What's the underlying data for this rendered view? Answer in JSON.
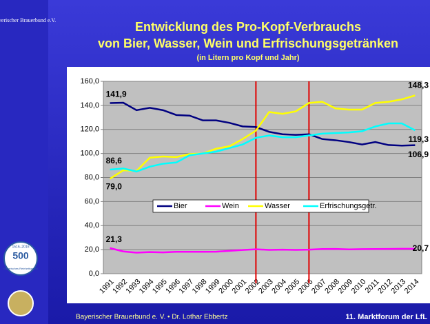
{
  "slide": {
    "footer_left": "Bayerischer Brauerbund e. V. • Dr. Lothar Ebbertz",
    "footer_right": "11. Marktforum der LfL",
    "logo_name": "Bayerischer Brauerbund e.V.",
    "badge_number": "500",
    "badge_years": "1516–2016",
    "badge_text": "Bayerisches Reinheitsgebot"
  },
  "chart_data": {
    "type": "line",
    "title": [
      "Entwicklung des Pro-Kopf-Verbrauchs",
      "von Bier, Wasser, Wein und Erfrischungsgetränken"
    ],
    "subtitle": "(in Litern pro Kopf und Jahr)",
    "categories": [
      "1991",
      "1992",
      "1993",
      "1994",
      "1995",
      "1996",
      "1997",
      "1998",
      "1999",
      "2000",
      "2001",
      "2002",
      "2003",
      "2004",
      "2005",
      "2006",
      "2007",
      "2008",
      "2009",
      "2010",
      "2011",
      "2012",
      "2013",
      "2014"
    ],
    "ylim": [
      0,
      160
    ],
    "yticks": [
      {
        "value": 0,
        "label": "0,0"
      },
      {
        "value": 20,
        "label": "20,0"
      },
      {
        "value": 40,
        "label": "40,0"
      },
      {
        "value": 60,
        "label": "60,0"
      },
      {
        "value": 80,
        "label": "80,0"
      },
      {
        "value": 100,
        "label": "100,0"
      },
      {
        "value": 120,
        "label": "120,0"
      },
      {
        "value": 140,
        "label": "140,0"
      },
      {
        "value": 160,
        "label": "160,0"
      }
    ],
    "grid": true,
    "vlines": [
      "2002",
      "2006"
    ],
    "vline_color": "#e00000",
    "legend": "center",
    "series": [
      {
        "name": "Bier",
        "color": "#000080",
        "values": [
          141.9,
          142.2,
          136,
          138,
          136,
          132,
          131.5,
          127.5,
          127.5,
          125.5,
          122.5,
          122,
          118,
          116,
          115.5,
          116,
          112,
          111,
          109.5,
          107.5,
          109.5,
          107,
          106.5,
          106.9
        ],
        "value_labels": [
          "141,9",
          null,
          null,
          null,
          null,
          null,
          null,
          null,
          null,
          null,
          null,
          null,
          null,
          null,
          null,
          null,
          null,
          null,
          null,
          null,
          null,
          null,
          null,
          "106,9"
        ]
      },
      {
        "name": "Wein",
        "color": "#ff00ff",
        "values": [
          21.3,
          18.5,
          17.5,
          18,
          17.7,
          18.2,
          18.2,
          18.2,
          18.3,
          19,
          19.7,
          20.3,
          19.8,
          20,
          19.8,
          20,
          20.5,
          20.6,
          20.2,
          20.4,
          20.5,
          20.6,
          20.7,
          20.7
        ],
        "value_labels": [
          "21,3",
          null,
          null,
          null,
          null,
          null,
          null,
          null,
          null,
          null,
          null,
          null,
          null,
          null,
          null,
          null,
          null,
          null,
          null,
          null,
          null,
          null,
          null,
          "20,7"
        ]
      },
      {
        "name": "Wasser",
        "color": "#ffff00",
        "values": [
          79.0,
          86,
          85.5,
          96.5,
          97.5,
          97,
          99.5,
          100,
          104,
          106,
          112,
          119,
          134.5,
          133,
          135,
          142,
          143,
          137.5,
          136.5,
          136.5,
          142,
          143,
          145,
          148.3
        ],
        "value_labels": [
          "79,0",
          null,
          null,
          null,
          null,
          null,
          null,
          null,
          null,
          null,
          null,
          null,
          null,
          null,
          null,
          null,
          null,
          null,
          null,
          null,
          null,
          null,
          null,
          "148,3"
        ]
      },
      {
        "name": "Erfrischungsgetr.",
        "color": "#00ffff",
        "values": [
          86.6,
          87.5,
          85,
          89,
          91.5,
          92.5,
          98.5,
          100,
          101.5,
          104.5,
          107.5,
          113,
          115,
          113.5,
          113.5,
          115,
          116.5,
          117,
          117.5,
          118.5,
          122.5,
          125,
          125,
          119.3
        ],
        "value_labels": [
          "86,6",
          null,
          null,
          null,
          null,
          null,
          null,
          null,
          null,
          null,
          null,
          null,
          null,
          null,
          null,
          null,
          null,
          null,
          null,
          null,
          null,
          null,
          null,
          "119,3"
        ]
      }
    ]
  }
}
